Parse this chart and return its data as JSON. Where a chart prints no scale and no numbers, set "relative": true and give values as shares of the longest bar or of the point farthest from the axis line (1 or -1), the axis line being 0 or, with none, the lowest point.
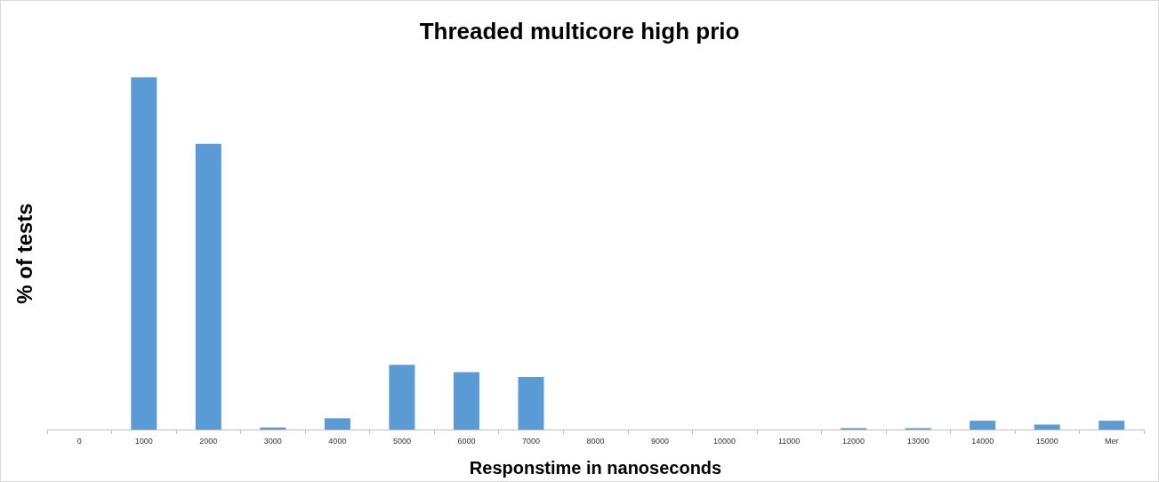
{
  "chart_data": {
    "type": "bar",
    "title": "Threaded multicore high prio",
    "xlabel": "Responstime in nanoseconds",
    "ylabel": "% of tests",
    "categories": [
      "0",
      "1000",
      "2000",
      "3000",
      "4000",
      "5000",
      "6000",
      "7000",
      "8000",
      "9000",
      "10000",
      "11000",
      "12000",
      "13000",
      "14000",
      "15000",
      "Mer"
    ],
    "values": [
      0,
      1,
      0.811,
      0.006,
      0.032,
      0.184,
      0.163,
      0.149,
      0,
      0,
      0,
      0,
      0.004,
      0.004,
      0.025,
      0.014,
      0.025
    ],
    "color": "#5b9bd5",
    "relative": true
  }
}
